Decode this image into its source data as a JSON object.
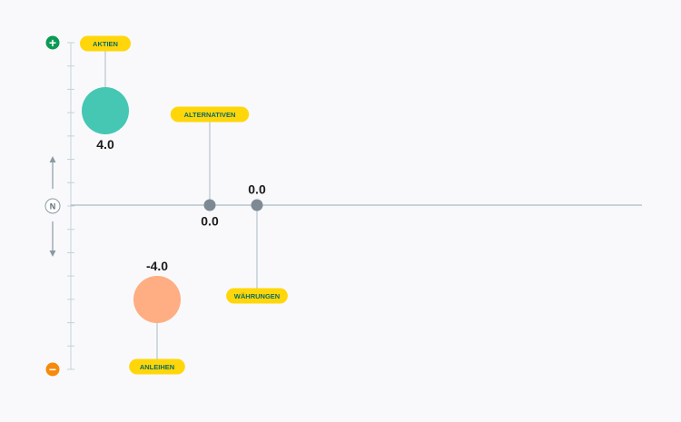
{
  "chart_data": {
    "type": "scatter",
    "title": "",
    "xlabel": "",
    "ylabel": "",
    "ylim": [
      -7,
      7
    ],
    "grid": false,
    "axis_markers": {
      "top_symbol": "+",
      "middle_symbol": "N",
      "bottom_symbol": "−"
    },
    "series": [
      {
        "label": "AKTIEN",
        "value": 4.0,
        "value_text": "4.0",
        "color": "#45c7b4",
        "size": "large",
        "label_position": "above",
        "value_position": "below"
      },
      {
        "label": "ANLEIHEN",
        "value": -4.0,
        "value_text": "-4.0",
        "color": "#ffad82",
        "size": "large",
        "label_position": "below",
        "value_position": "above"
      },
      {
        "label": "ALTERNATIVEN",
        "value": 0.0,
        "value_text": "0.0",
        "color": "#7d8a94",
        "size": "small",
        "label_position": "above",
        "value_position": "below"
      },
      {
        "label": "WÄHRUNGEN",
        "value": 0.0,
        "value_text": "0.0",
        "color": "#7d8a94",
        "size": "small",
        "label_position": "below",
        "value_position": "above"
      }
    ],
    "colors": {
      "label_bg": "#ffd60a",
      "label_text": "#0d6b63",
      "plus_badge": "#0b9a55",
      "minus_badge": "#f58a0b",
      "axis": "#a9bcc6",
      "scale": "#c2d2da"
    }
  }
}
